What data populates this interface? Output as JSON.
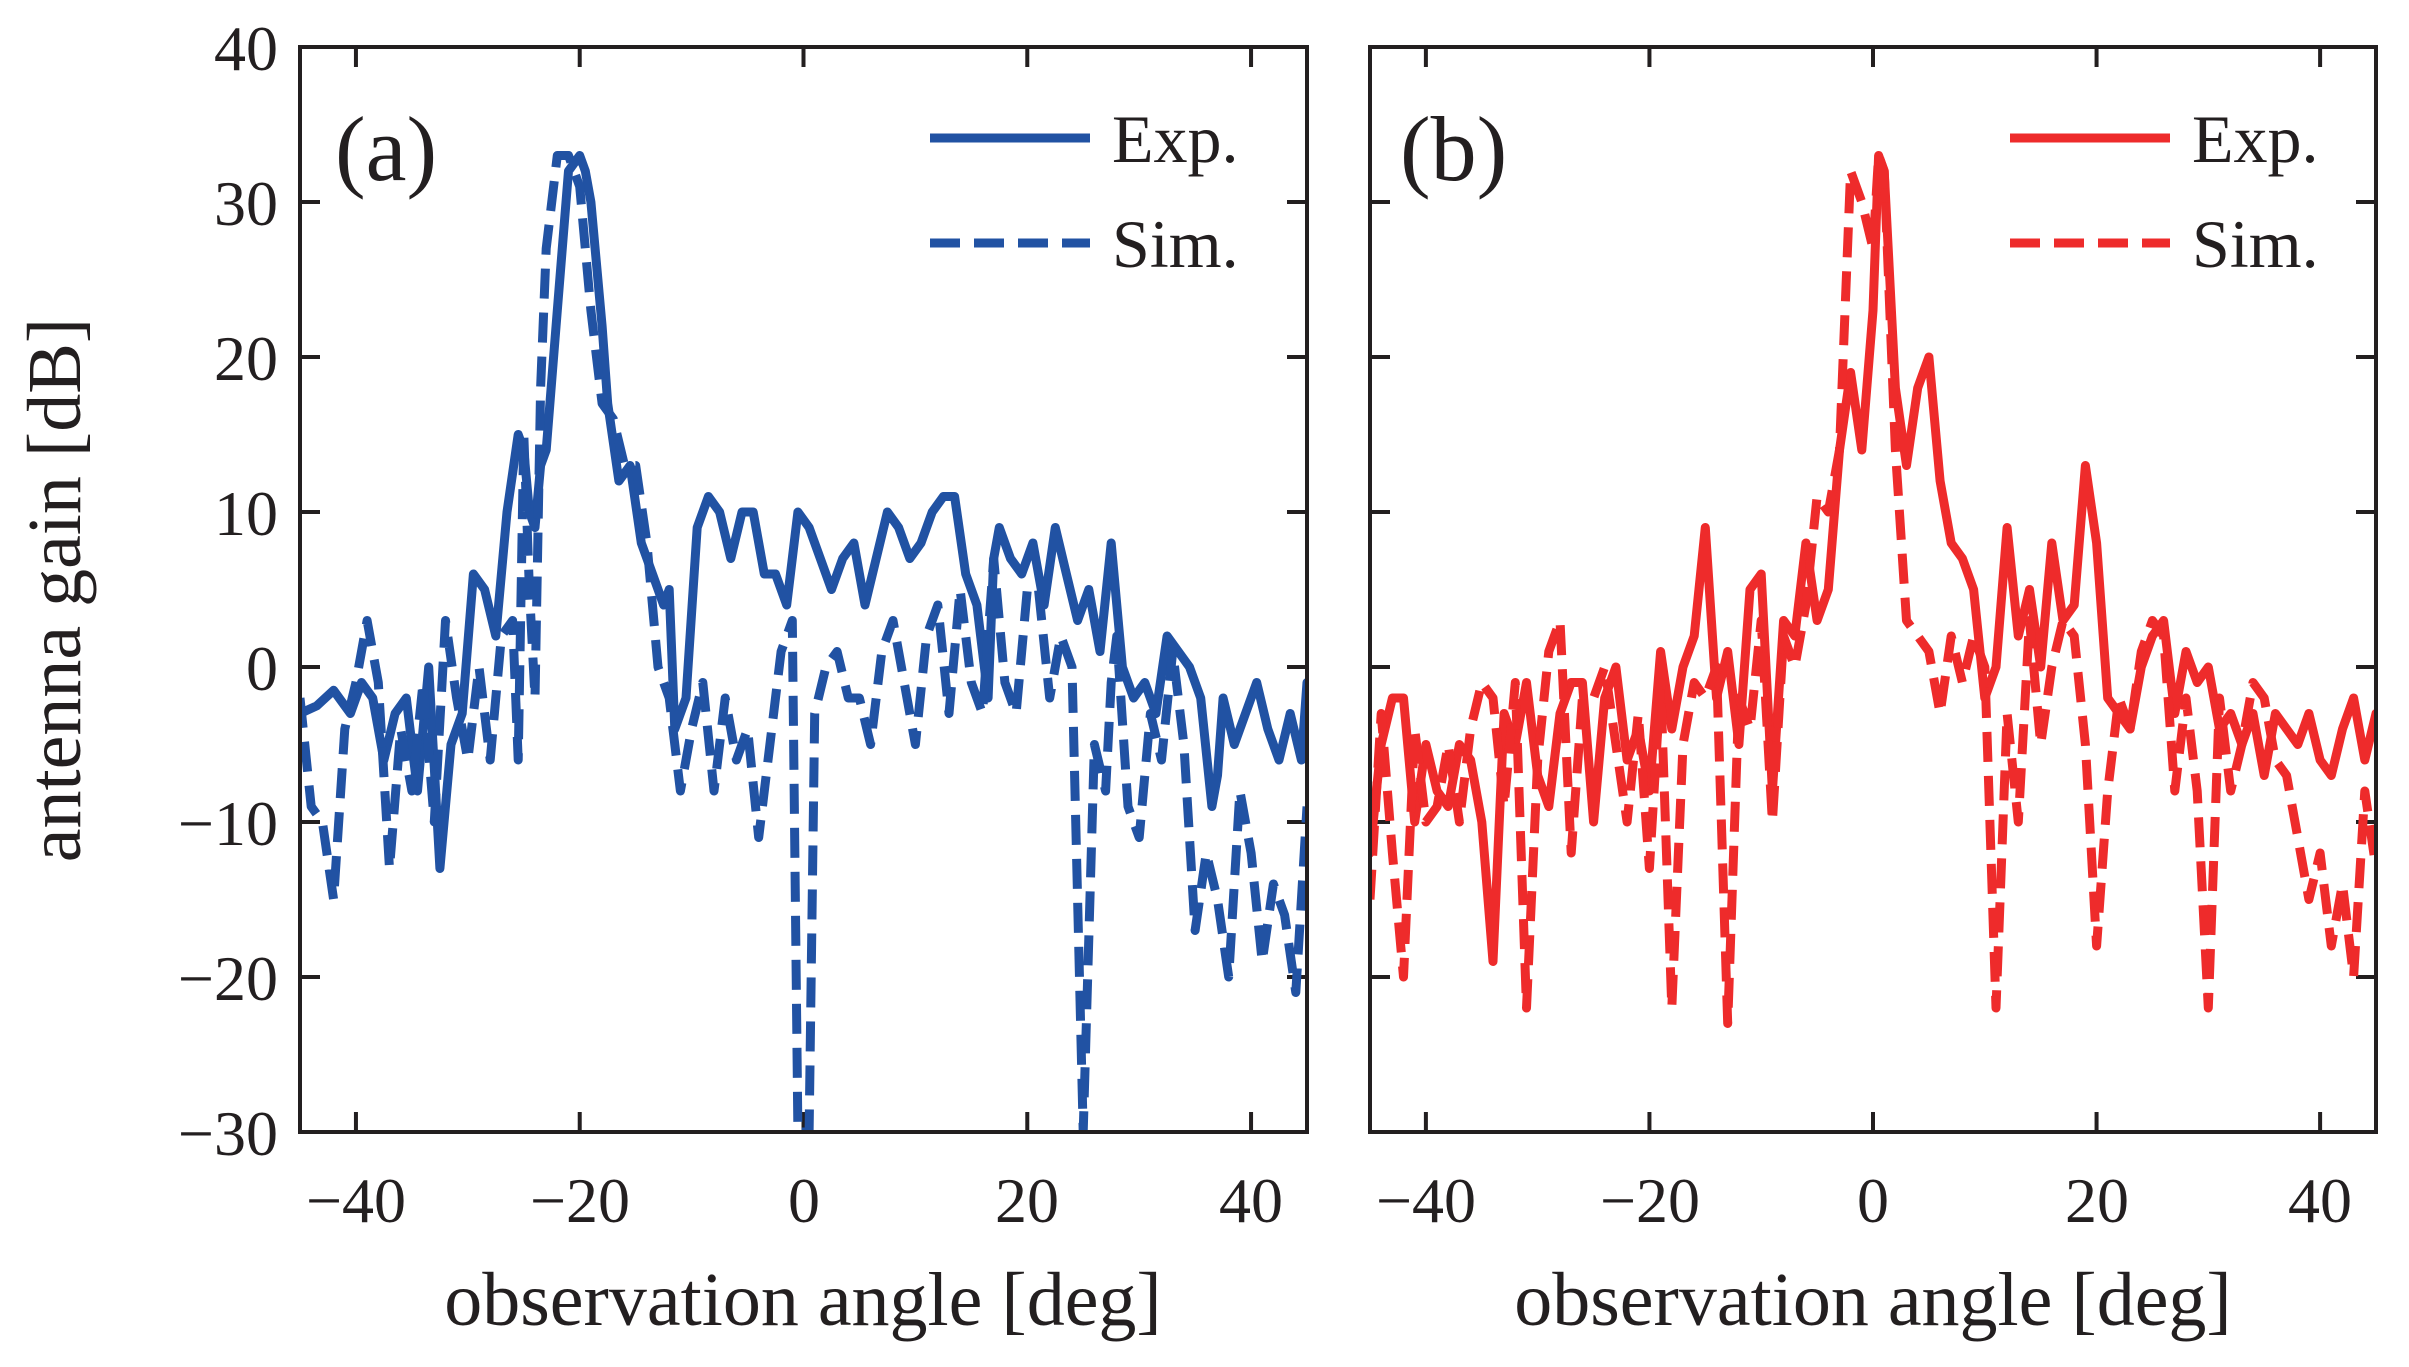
{
  "figure": {
    "ylabel": "antenna gain [dB]",
    "y_ticks": [
      "40",
      "30",
      "20",
      "10",
      "0",
      "−10",
      "−20",
      "−30"
    ],
    "x_ticks": [
      "−40",
      "−20",
      "0",
      "20",
      "40"
    ]
  },
  "colors": {
    "blue": "#2152a3",
    "red": "#ee2b2b",
    "axis": "#231f20"
  },
  "chart_data": [
    {
      "type": "line",
      "panel_label": "(a)",
      "xlabel": "observation angle [deg]",
      "ylabel": "antenna gain [dB]",
      "xlim": [
        -45,
        45
      ],
      "ylim": [
        -30,
        40
      ],
      "x_ticks": [
        -40,
        -20,
        0,
        20,
        40
      ],
      "y_ticks": [
        40,
        30,
        20,
        10,
        0,
        -10,
        -20,
        -30
      ],
      "legend": {
        "position": "top-right",
        "entries": [
          "Exp.",
          "Sim."
        ]
      },
      "color": "#2152a3",
      "series": [
        {
          "name": "Exp.",
          "style": "solid",
          "x": [
            -45,
            -43.5,
            -42,
            -40.5,
            -39.5,
            -38.5,
            -37.5,
            -36.5,
            -35.5,
            -34.5,
            -33.5,
            -32.5,
            -31.5,
            -30.5,
            -29.5,
            -28.5,
            -27.5,
            -26.5,
            -25.5,
            -25,
            -24.5,
            -24,
            -23.5,
            -23,
            -22,
            -21,
            -20,
            -19.5,
            -19,
            -18,
            -17.5,
            -16.5,
            -15.5,
            -14.5,
            -13.5,
            -12.5,
            -12,
            -11.5,
            -10.5,
            -9.5,
            -8.5,
            -7.5,
            -6.5,
            -5.5,
            -4.5,
            -3.5,
            -2.5,
            -1.5,
            -0.5,
            0.5,
            1.5,
            2.5,
            3.5,
            4.5,
            5.5,
            6.5,
            7.5,
            8.5,
            9.5,
            10.5,
            11.5,
            12.5,
            13.5,
            14.5,
            15.5,
            16.5,
            17,
            17.5,
            18.5,
            19.5,
            20.5,
            21.5,
            22.5,
            23.5,
            24.5,
            25.5,
            26.5,
            27.5,
            28.5,
            29.5,
            30.5,
            31.5,
            32.5,
            33.5,
            34.5,
            35.5,
            36.5,
            37,
            37.5,
            38.5,
            39.5,
            40.5,
            41.5,
            42.5,
            43.5,
            44.5,
            45
          ],
          "values": [
            -3,
            -2.5,
            -1.5,
            -3,
            -1,
            -2,
            -6,
            -3,
            -2,
            -8,
            0,
            -13,
            -5,
            -3,
            6,
            5,
            2,
            10,
            15,
            14,
            10,
            9,
            13,
            14,
            23,
            32,
            33,
            32,
            30,
            22,
            17,
            12,
            13,
            8,
            6,
            4,
            5,
            -4,
            -2,
            9,
            11,
            10,
            7,
            10,
            10,
            6,
            6,
            4,
            10,
            9,
            7,
            5,
            7,
            8,
            4,
            7,
            10,
            9,
            7,
            8,
            10,
            11,
            11,
            6,
            4,
            -2,
            7,
            9,
            7,
            6,
            8,
            4,
            9,
            6,
            3,
            5,
            1,
            8,
            0,
            -2,
            -1,
            -3,
            2,
            1,
            0,
            -2,
            -9,
            -7,
            -2,
            -5,
            -3,
            -1,
            -4,
            -6,
            -3,
            -6,
            -1
          ]
        },
        {
          "name": "Sim.",
          "style": "dashed",
          "x": [
            -45,
            -44,
            -43,
            -42,
            -41,
            -40,
            -39,
            -38,
            -37,
            -36,
            -35,
            -34,
            -33,
            -32,
            -31,
            -30,
            -29,
            -28,
            -27,
            -26,
            -25.5,
            -25,
            -24.5,
            -24,
            -23.5,
            -23,
            -22,
            -21,
            -20,
            -19,
            -18,
            -17,
            -16,
            -15,
            -14,
            -13,
            -12,
            -11,
            -10,
            -9,
            -8,
            -7,
            -6,
            -5,
            -4,
            -3,
            -2,
            -1,
            -0.5,
            0,
            0.5,
            1,
            2,
            3,
            4,
            5,
            6,
            7,
            8,
            9,
            10,
            11,
            12,
            13,
            14,
            15,
            16,
            17,
            18,
            19,
            20,
            21,
            22,
            23,
            24,
            25,
            26,
            27,
            27.5,
            28,
            29,
            30,
            31,
            32,
            33,
            34,
            35,
            36,
            37,
            38,
            39,
            40,
            41,
            42,
            43,
            44,
            45
          ],
          "values": [
            -2,
            -9,
            -10,
            -15,
            -4,
            -1,
            3,
            -1,
            -13,
            -4,
            -8,
            -1,
            -10,
            3,
            -2,
            -6,
            0,
            -6,
            2,
            3,
            -6,
            15,
            5,
            -2,
            18,
            27,
            33,
            33,
            31,
            23,
            17,
            16,
            13,
            13,
            8,
            0,
            -2,
            -8,
            -4,
            -1,
            -8,
            -2,
            -6,
            -4,
            -11,
            -5,
            1,
            3,
            -30,
            -30,
            -30,
            -3,
            0,
            1,
            -2,
            -2,
            -5,
            1,
            3,
            -1,
            -5,
            2,
            4,
            -3,
            5,
            -1,
            -3,
            7,
            -1,
            -3,
            5,
            5,
            -2,
            2,
            0,
            -30,
            -5,
            -8,
            -1,
            2,
            -9,
            -11,
            -3,
            -6,
            1,
            -5,
            -17,
            -12,
            -15,
            -20,
            -8,
            -12,
            -19,
            -14,
            -16,
            -21,
            -9
          ]
        }
      ]
    },
    {
      "type": "line",
      "panel_label": "(b)",
      "xlabel": "observation angle [deg]",
      "ylabel": "antenna gain [dB]",
      "xlim": [
        -45,
        45
      ],
      "ylim": [
        -30,
        40
      ],
      "x_ticks": [
        -40,
        -20,
        0,
        20,
        40
      ],
      "y_ticks": [
        40,
        30,
        20,
        10,
        0,
        -10,
        -20,
        -30
      ],
      "legend": {
        "position": "top-right",
        "entries": [
          "Exp.",
          "Sim."
        ]
      },
      "color": "#ee2b2b",
      "series": [
        {
          "name": "Exp.",
          "style": "solid",
          "x": [
            -45,
            -44,
            -43,
            -42,
            -41,
            -40,
            -39,
            -38,
            -37,
            -36,
            -35,
            -34,
            -33,
            -32,
            -31,
            -30,
            -29,
            -28,
            -27,
            -26,
            -25,
            -24,
            -23,
            -22,
            -21,
            -20,
            -19,
            -18,
            -17,
            -16,
            -15,
            -14,
            -13,
            -12,
            -11,
            -10,
            -9,
            -8,
            -7,
            -6,
            -5,
            -4,
            -3,
            -2,
            -1,
            0,
            0.5,
            1,
            2,
            3,
            4,
            5,
            6,
            7,
            8,
            9,
            10,
            11,
            12,
            13,
            14,
            15,
            16,
            17,
            18,
            19,
            20,
            21,
            22,
            23,
            24,
            25,
            26,
            27,
            28,
            29,
            30,
            31,
            32,
            33,
            34,
            35,
            36,
            37,
            38,
            39,
            40,
            41,
            42,
            43,
            44,
            45
          ],
          "values": [
            -12,
            -5,
            -2,
            -2,
            -10,
            -5,
            -8,
            -9,
            -5,
            -6,
            -10,
            -19,
            -3,
            -5,
            -1,
            -7,
            -9,
            -3,
            -1,
            -1,
            -10,
            -2,
            0,
            -6,
            -4,
            -8,
            1,
            -4,
            0,
            2,
            9,
            -2,
            1,
            -5,
            5,
            6,
            -8,
            3,
            2,
            8,
            3,
            5,
            14,
            19,
            14,
            23,
            33,
            32,
            18,
            13,
            18,
            20,
            12,
            8,
            7,
            5,
            -2,
            0,
            9,
            2,
            5,
            0,
            8,
            3,
            4,
            13,
            8,
            -2,
            -3,
            -4,
            0,
            2,
            3,
            -3,
            1,
            -1,
            0,
            -4,
            -3,
            -5,
            -3,
            -7,
            -3,
            -4,
            -5,
            -3,
            -6,
            -7,
            -4,
            -2,
            -6,
            -3
          ]
        },
        {
          "name": "Sim.",
          "style": "dashed",
          "x": [
            -45,
            -44,
            -43,
            -42,
            -41,
            -40,
            -39,
            -38,
            -37,
            -36,
            -35,
            -34,
            -33,
            -32,
            -31,
            -30,
            -29,
            -28,
            -27,
            -26,
            -25,
            -24,
            -23,
            -22,
            -21,
            -20,
            -19,
            -18,
            -17,
            -16,
            -15,
            -14,
            -13,
            -12,
            -11,
            -10,
            -9,
            -8,
            -7,
            -6,
            -5,
            -4,
            -3,
            -2,
            -1,
            0,
            0.5,
            1,
            2,
            3,
            4,
            5,
            6,
            7,
            8,
            9,
            10,
            11,
            12,
            13,
            14,
            15,
            16,
            17,
            18,
            19,
            20,
            21,
            22,
            23,
            24,
            25,
            26,
            27,
            28,
            29,
            30,
            31,
            32,
            33,
            34,
            35,
            36,
            37,
            38,
            39,
            40,
            41,
            42,
            43,
            44,
            45
          ],
          "values": [
            -15,
            -3,
            -12,
            -20,
            -4,
            -10,
            -9,
            -5,
            -10,
            -4,
            -1,
            -2,
            -9,
            -1,
            -22,
            -6,
            1,
            3,
            -12,
            -2,
            -2,
            0,
            -5,
            -10,
            -3,
            -13,
            -1,
            -22,
            -5,
            -1,
            -2,
            0,
            -23,
            -2,
            -4,
            3,
            -10,
            2,
            0,
            4,
            11,
            10,
            14,
            32,
            30,
            27,
            33,
            32,
            14,
            3,
            2,
            1,
            -3,
            2,
            -1,
            2,
            0,
            -22,
            -3,
            -10,
            3,
            -5,
            0,
            3,
            2,
            -5,
            -18,
            -8,
            -2,
            -4,
            1,
            3,
            2,
            -8,
            -2,
            -8,
            -22,
            -2,
            -8,
            -5,
            -1,
            -2,
            -6,
            -7,
            -11,
            -15,
            -12,
            -18,
            -14,
            -20,
            -8,
            -13
          ]
        }
      ]
    }
  ]
}
